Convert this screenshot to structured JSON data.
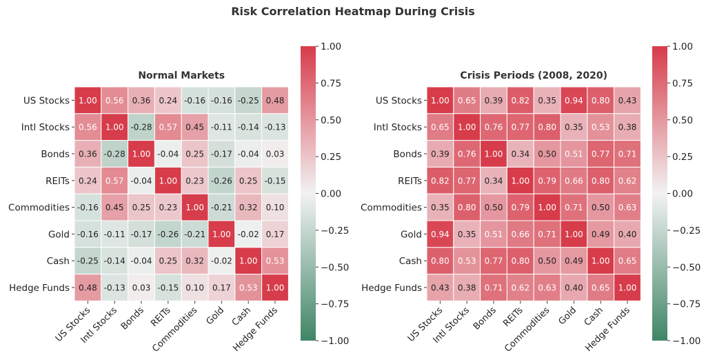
{
  "figure_title": "Risk Correlation Heatmap During Crisis",
  "chart_data": [
    {
      "type": "heatmap",
      "title": "Normal Markets",
      "labels": [
        "US Stocks",
        "Intl Stocks",
        "Bonds",
        "REITs",
        "Commodities",
        "Gold",
        "Cash",
        "Hedge Funds"
      ],
      "matrix": [
        [
          1.0,
          0.56,
          0.36,
          0.24,
          -0.16,
          -0.16,
          -0.25,
          0.48
        ],
        [
          0.56,
          1.0,
          -0.28,
          0.57,
          0.45,
          -0.11,
          -0.14,
          -0.13
        ],
        [
          0.36,
          -0.28,
          1.0,
          -0.04,
          0.25,
          -0.17,
          -0.04,
          0.03
        ],
        [
          0.24,
          0.57,
          -0.04,
          1.0,
          0.23,
          -0.26,
          0.25,
          -0.15
        ],
        [
          -0.16,
          0.45,
          0.25,
          0.23,
          1.0,
          -0.21,
          0.32,
          0.1
        ],
        [
          -0.16,
          -0.11,
          -0.17,
          -0.26,
          -0.21,
          1.0,
          -0.02,
          0.17
        ],
        [
          -0.25,
          -0.14,
          -0.04,
          0.25,
          0.32,
          -0.02,
          1.0,
          0.53
        ],
        [
          0.48,
          -0.13,
          0.03,
          -0.15,
          0.1,
          0.17,
          0.53,
          1.0
        ]
      ],
      "vmin": -1.0,
      "vmax": 1.0,
      "colorbar_ticks": [
        "1.00",
        "0.75",
        "0.50",
        "0.25",
        "0.00",
        "−0.25",
        "−0.50",
        "−0.75",
        "−1.00"
      ]
    },
    {
      "type": "heatmap",
      "title": "Crisis Periods (2008, 2020)",
      "labels": [
        "US Stocks",
        "Intl Stocks",
        "Bonds",
        "REITs",
        "Commodities",
        "Gold",
        "Cash",
        "Hedge Funds"
      ],
      "matrix": [
        [
          1.0,
          0.65,
          0.39,
          0.82,
          0.35,
          0.94,
          0.8,
          0.43
        ],
        [
          0.65,
          1.0,
          0.76,
          0.77,
          0.8,
          0.35,
          0.53,
          0.38
        ],
        [
          0.39,
          0.76,
          1.0,
          0.34,
          0.5,
          0.51,
          0.77,
          0.71
        ],
        [
          0.82,
          0.77,
          0.34,
          1.0,
          0.79,
          0.66,
          0.8,
          0.62
        ],
        [
          0.35,
          0.8,
          0.5,
          0.79,
          1.0,
          0.71,
          0.5,
          0.63
        ],
        [
          0.94,
          0.35,
          0.51,
          0.66,
          0.71,
          1.0,
          0.49,
          0.4
        ],
        [
          0.8,
          0.53,
          0.77,
          0.8,
          0.5,
          0.49,
          1.0,
          0.65
        ],
        [
          0.43,
          0.38,
          0.71,
          0.62,
          0.63,
          0.4,
          0.65,
          1.0
        ]
      ],
      "vmin": -1.0,
      "vmax": 1.0,
      "colorbar_ticks": [
        "1.00",
        "0.75",
        "0.50",
        "0.25",
        "0.00",
        "−0.25",
        "−0.50",
        "−0.75",
        "−1.00"
      ]
    }
  ],
  "colors": {
    "positive": "#d73c4b",
    "neutral": "#f2f2f2",
    "negative": "#3f8566",
    "cell_border": "#ffffff"
  }
}
